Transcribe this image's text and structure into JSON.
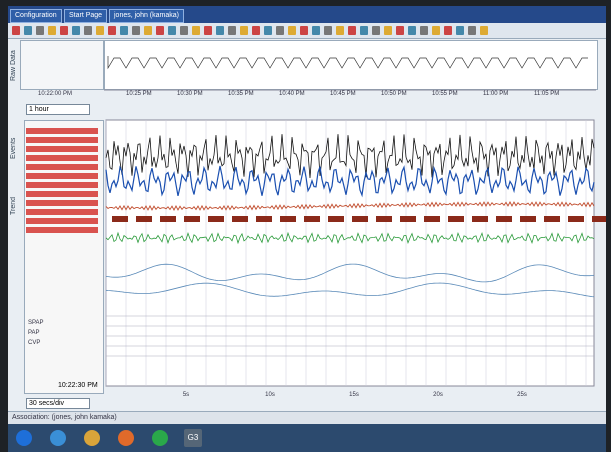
{
  "tabs": [
    "Configuration",
    "Start Page",
    "jones, john (kamaka)"
  ],
  "side_tabs": [
    "Raw Data",
    "Events",
    "Trend"
  ],
  "raw_data": {
    "time_label": "10:22:00 PM",
    "timeline": [
      "10:25 PM",
      "10:30 PM",
      "10:35 PM",
      "10:40 PM",
      "10:45 PM",
      "10:50 PM",
      "10:55 PM",
      "11:00 PM",
      "11:05 PM"
    ]
  },
  "range_select": "1 hour",
  "channels": [
    "SPAP",
    "PAP",
    "CVP"
  ],
  "main": {
    "time_label": "10:22:30 PM",
    "scale_select": "30 secs/div",
    "axis": [
      "5s",
      "10s",
      "15s",
      "20s",
      "25s"
    ]
  },
  "status": "Association: (jones, john kamaka)",
  "taskbar": [
    "G3"
  ]
}
